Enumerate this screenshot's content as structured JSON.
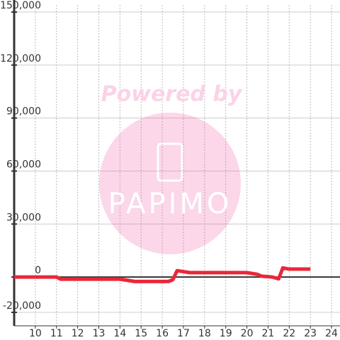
{
  "chart_data": {
    "type": "line",
    "watermark": {
      "top": "Powered by",
      "bottom": "PAPIMO"
    },
    "x": [
      9,
      11,
      11.2,
      14,
      14.7,
      16.3,
      16.5,
      16.7,
      17.3,
      20,
      20.5,
      20.7,
      21.2,
      21.5,
      21.7,
      22,
      23
    ],
    "series": [
      {
        "name": null,
        "color": "#e8283a",
        "values": [
          0,
          0,
          -1200,
          -1200,
          -2500,
          -2500,
          -1500,
          3600,
          2500,
          2500,
          1500,
          500,
          0,
          -1000,
          5200,
          4500,
          4500
        ]
      }
    ],
    "xlim": [
      9,
      24.4
    ],
    "xticks": [
      10,
      11,
      12,
      13,
      14,
      15,
      16,
      17,
      18,
      19,
      20,
      21,
      22,
      23,
      24
    ],
    "ylim": [
      -20000,
      150000
    ],
    "yticks": [
      {
        "value": -20000,
        "label": "-20,000"
      },
      0,
      {
        "value": 30000,
        "label": "30,000"
      },
      {
        "value": 60000,
        "label": "60,000"
      },
      {
        "value": 90000,
        "label": "90,000"
      },
      {
        "value": 120000,
        "label": "120,000"
      },
      {
        "value": 150000,
        "label": "150,000"
      }
    ],
    "grid": true
  }
}
